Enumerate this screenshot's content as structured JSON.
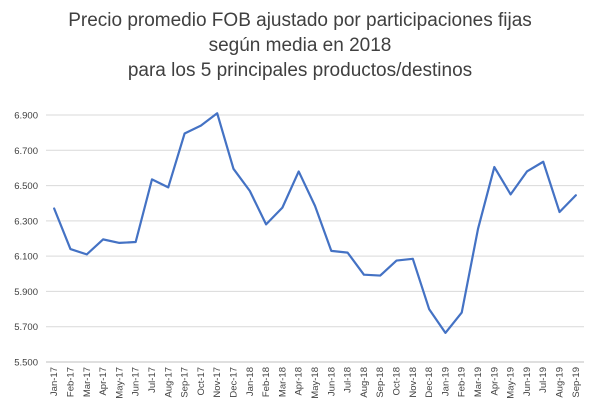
{
  "chart_data": {
    "type": "line",
    "title_lines": [
      "Precio promedio FOB ajustado por participaciones fijas",
      "según media en 2018",
      "para los 5 principales productos/destinos"
    ],
    "xlabel": "",
    "ylabel": "",
    "ylim": [
      5500,
      6900
    ],
    "yticks": [
      5500,
      5700,
      5900,
      6100,
      6300,
      6500,
      6700,
      6900
    ],
    "ytick_labels": [
      "5.500",
      "5.700",
      "5.900",
      "6.100",
      "6.300",
      "6.500",
      "6.700",
      "6.900"
    ],
    "grid": true,
    "legend": "none",
    "line_color": "#4472c4",
    "categories": [
      "Jan-17",
      "Feb-17",
      "Mar-17",
      "Apr-17",
      "May-17",
      "Jun-17",
      "Jul-17",
      "Aug-17",
      "Sep-17",
      "Oct-17",
      "Nov-17",
      "Dec-17",
      "Jan-18",
      "Feb-18",
      "Mar-18",
      "Apr-18",
      "May-18",
      "Jun-18",
      "Jul-18",
      "Aug-18",
      "Sep-18",
      "Oct-18",
      "Nov-18",
      "Dec-18",
      "Jan-19",
      "Feb-19",
      "Mar-19",
      "Apr-19",
      "May-19",
      "Jun-19",
      "Jul-19",
      "Aug-19",
      "Sep-19"
    ],
    "series": [
      {
        "values": [
          6370,
          6140,
          6110,
          6195,
          6175,
          6180,
          6535,
          6490,
          6795,
          6840,
          6910,
          6595,
          6470,
          6280,
          6375,
          6580,
          6385,
          6130,
          6120,
          5995,
          5990,
          6075,
          6085,
          5800,
          5665,
          5780,
          6255,
          6605,
          6450,
          6580,
          6635,
          6350,
          6445
        ]
      }
    ]
  }
}
